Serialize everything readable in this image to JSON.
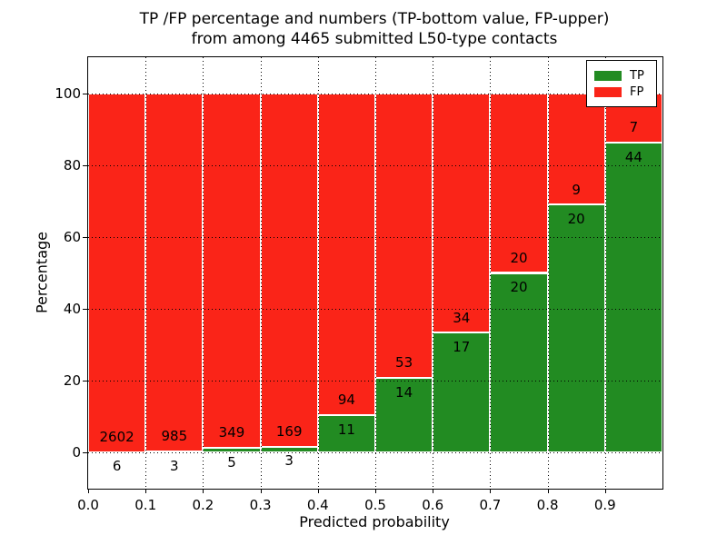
{
  "title": {
    "line1": "TP /FP percentage and numbers (TP-bottom value, FP-upper)",
    "line2": "from among 4465 submitted L50-type contacts"
  },
  "axes": {
    "xlabel": "Predicted probability",
    "ylabel": "Percentage",
    "xtick_labels": [
      "0.0",
      "0.1",
      "0.2",
      "0.3",
      "0.4",
      "0.5",
      "0.6",
      "0.7",
      "0.8",
      "0.9"
    ],
    "yticks": [
      0,
      20,
      40,
      60,
      80,
      100
    ],
    "xlim": [
      0.0,
      1.0
    ],
    "ylim": [
      -10,
      110
    ]
  },
  "chart_data": {
    "type": "bar",
    "stacked": true,
    "normalized_to_percent": 100,
    "title": "TP /FP percentage and numbers (TP-bottom value, FP-upper) from among 4465 submitted L50-type contacts",
    "xlabel": "Predicted probability",
    "ylabel": "Percentage",
    "total_submitted": 4465,
    "bins": [
      "0.0-0.1",
      "0.1-0.2",
      "0.2-0.3",
      "0.3-0.4",
      "0.4-0.5",
      "0.5-0.6",
      "0.6-0.7",
      "0.7-0.8",
      "0.8-0.9",
      "0.9-1.0"
    ],
    "series": [
      {
        "name": "TP",
        "color": "#228b22",
        "counts": [
          6,
          3,
          5,
          3,
          11,
          14,
          17,
          20,
          20,
          44
        ]
      },
      {
        "name": "FP",
        "color": "#fa2418",
        "counts": [
          2602,
          985,
          349,
          169,
          94,
          53,
          34,
          20,
          9,
          7
        ]
      }
    ],
    "tp_percent": [
      0.23,
      0.3,
      1.41,
      1.74,
      10.48,
      20.9,
      33.33,
      50.0,
      68.97,
      86.27
    ],
    "grid": "dotted",
    "legend_position": "upper right"
  }
}
